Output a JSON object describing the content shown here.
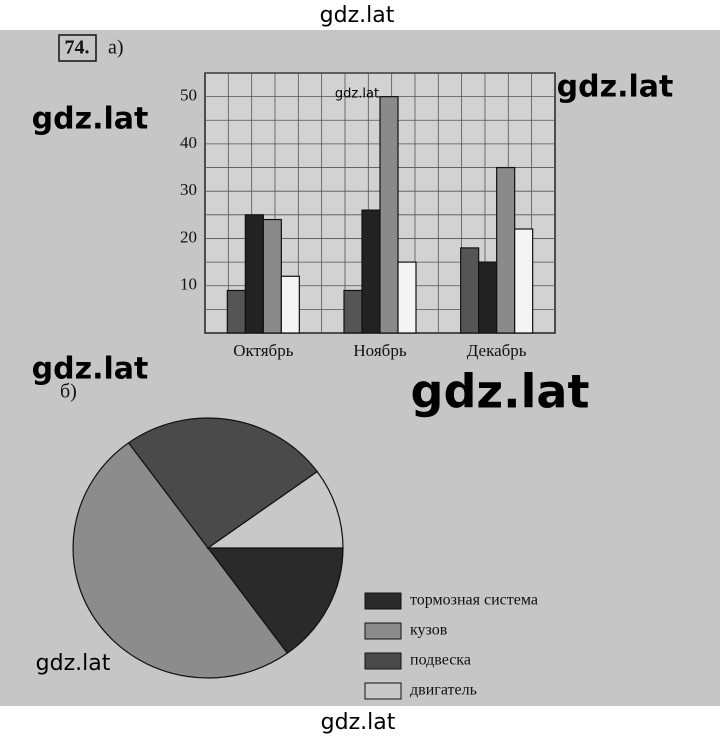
{
  "exercise": "74.",
  "watermarks": [
    "gdz.lat",
    "gdz.lat",
    "gdz.lat",
    "gdz.lat",
    "gdz.lat",
    "gdz.lat",
    "gdz.lat",
    "gdz.lat"
  ],
  "chart_data": [
    {
      "type": "bar",
      "label": "а)",
      "categories": [
        "Октябрь",
        "Ноябрь",
        "Декабрь"
      ],
      "series": [
        {
          "color": "#555555",
          "values": [
            9,
            9,
            18
          ]
        },
        {
          "color": "#222222",
          "values": [
            25,
            26,
            15
          ]
        },
        {
          "color": "#8a8a8a",
          "values": [
            24,
            50,
            35
          ]
        },
        {
          "color": "#f4f4f4",
          "values": [
            12,
            15,
            22
          ]
        }
      ],
      "ylim": [
        0,
        55
      ],
      "yticks": [
        10,
        20,
        30,
        40,
        50
      ],
      "minor_yticks": [
        5,
        15,
        25,
        35,
        45,
        55
      ],
      "grid": true
    },
    {
      "type": "pie",
      "label": "б)",
      "labels": [
        "тормозная система",
        "кузов",
        "подвеска",
        "двигатель"
      ],
      "values": [
        15,
        50,
        25,
        10
      ],
      "colors": [
        "#2a2a2a",
        "#8c8c8c",
        "#4a4a4a",
        "#c8c8c8"
      ]
    }
  ]
}
